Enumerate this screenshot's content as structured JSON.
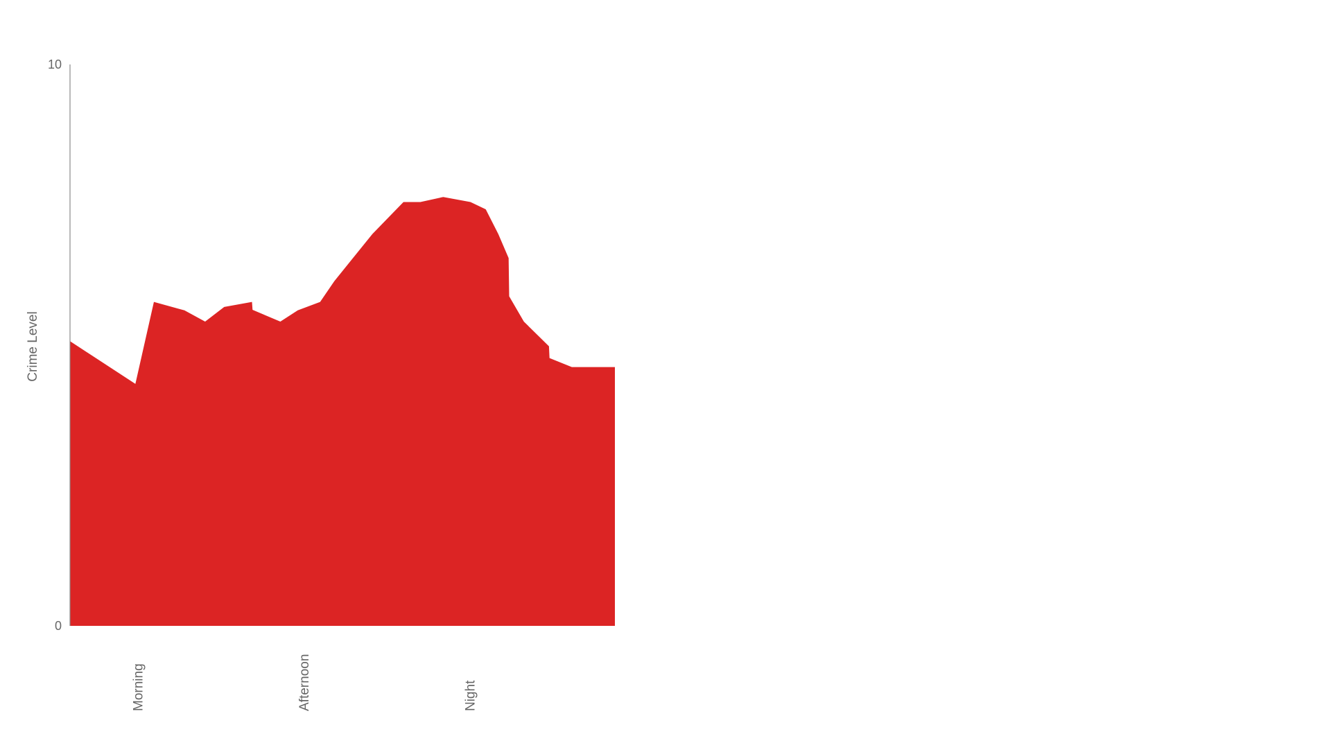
{
  "chart_data": {
    "type": "area",
    "title": "",
    "xlabel": "",
    "ylabel": "Crime Level",
    "ylim": [
      0,
      10
    ],
    "y_ticks": [
      "0",
      "10"
    ],
    "x_categories": [
      "Morning",
      "Afternoon",
      "Night"
    ],
    "x_category_positions": [
      0.125,
      0.43,
      0.735
    ],
    "x_range": [
      0,
      1
    ],
    "grid": false,
    "legend": "none",
    "series": [
      {
        "color": "#dc2424",
        "points": [
          [
            0.0,
            5.07
          ],
          [
            0.12,
            4.31
          ],
          [
            0.154,
            5.77
          ],
          [
            0.21,
            5.62
          ],
          [
            0.248,
            5.42
          ],
          [
            0.283,
            5.68
          ],
          [
            0.334,
            5.77
          ],
          [
            0.335,
            5.63
          ],
          [
            0.386,
            5.42
          ],
          [
            0.418,
            5.62
          ],
          [
            0.459,
            5.77
          ],
          [
            0.485,
            6.14
          ],
          [
            0.555,
            6.98
          ],
          [
            0.612,
            7.55
          ],
          [
            0.643,
            7.55
          ],
          [
            0.685,
            7.64
          ],
          [
            0.735,
            7.55
          ],
          [
            0.763,
            7.42
          ],
          [
            0.786,
            6.98
          ],
          [
            0.805,
            6.55
          ],
          [
            0.806,
            5.87
          ],
          [
            0.833,
            5.42
          ],
          [
            0.879,
            4.98
          ],
          [
            0.88,
            4.77
          ],
          [
            0.921,
            4.61
          ],
          [
            1.0,
            4.61
          ]
        ]
      }
    ]
  }
}
